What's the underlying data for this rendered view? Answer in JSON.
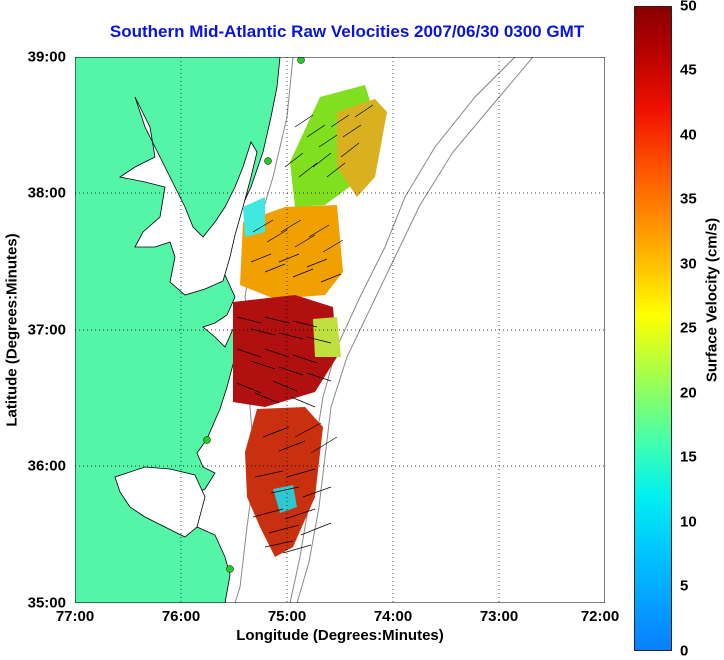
{
  "title": "Southern Mid-Atlantic Raw Velocities 2007/06/30 0300 GMT",
  "x_axis": {
    "label": "Longitude (Degrees:Minutes)",
    "ticks": [
      "77:00",
      "76:00",
      "75:00",
      "74:00",
      "73:00",
      "72:00"
    ]
  },
  "y_axis": {
    "label": "Latitude (Degrees:Minutes)",
    "ticks": [
      "39:00",
      "38:00",
      "37:00",
      "36:00",
      "35:00"
    ]
  },
  "colorbar": {
    "label": "Surface Velocity (cm/s)",
    "ticks": [
      "50",
      "45",
      "40",
      "35",
      "30",
      "25",
      "20",
      "15",
      "10",
      "5",
      "0"
    ],
    "range": [
      0,
      50
    ]
  },
  "colors": {
    "land": "#55f5a8",
    "title": "#0a14d8",
    "station": "#22cc22"
  }
}
